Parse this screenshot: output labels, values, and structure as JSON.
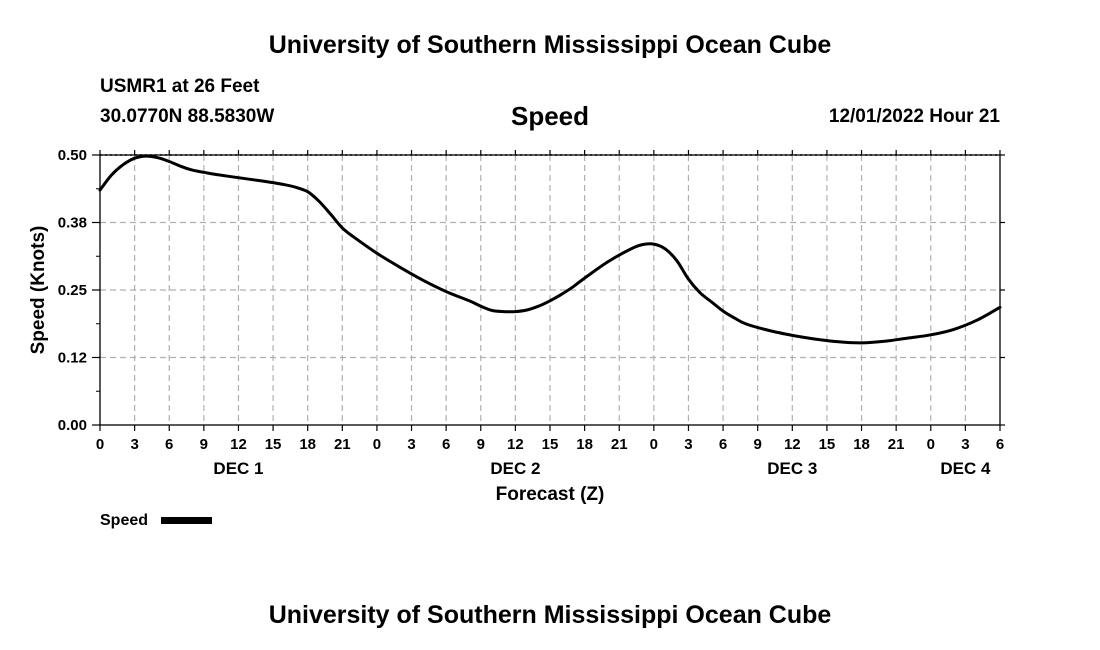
{
  "header": {
    "title": "University of Southern Mississippi Ocean Cube",
    "station": "USMR1 at 26 Feet",
    "location": "30.0770N  88.5830W",
    "datetime": "12/01/2022 Hour 21"
  },
  "footer": {
    "title": "University of Southern Mississippi Ocean Cube"
  },
  "chart_data": {
    "type": "line",
    "title": "Speed",
    "xlabel": "Forecast (Z)",
    "ylabel": "Speed (Knots)",
    "x_unit": "hours since 2022-12-01 00Z",
    "xlim": [
      0,
      78
    ],
    "ylim": [
      0,
      0.5
    ],
    "yticks": [
      0,
      0.125,
      0.25,
      0.375,
      0.5
    ],
    "ytick_labels": [
      "0.00",
      "0.12",
      "0.25",
      "0.38",
      "0.50"
    ],
    "xticks": [
      0,
      3,
      6,
      9,
      12,
      15,
      18,
      21,
      24,
      27,
      30,
      33,
      36,
      39,
      42,
      45,
      48,
      51,
      54,
      57,
      60,
      63,
      66,
      69,
      72,
      75,
      78
    ],
    "xtick_labels": [
      "0",
      "3",
      "6",
      "9",
      "12",
      "15",
      "18",
      "21",
      "0",
      "3",
      "6",
      "9",
      "12",
      "15",
      "18",
      "21",
      "0",
      "3",
      "6",
      "9",
      "12",
      "15",
      "18",
      "21",
      "0",
      "3",
      "6"
    ],
    "day_labels": [
      {
        "label": "DEC 1",
        "hour": 12
      },
      {
        "label": "DEC 2",
        "hour": 36
      },
      {
        "label": "DEC 3",
        "hour": 60
      },
      {
        "label": "DEC 4",
        "hour": 75
      }
    ],
    "grid": true,
    "legend": {
      "label": "Speed",
      "placement": "bottom-left"
    },
    "series": [
      {
        "name": "Speed",
        "x": [
          0,
          1,
          2,
          3,
          4,
          5,
          6,
          7,
          8,
          9,
          10,
          12,
          14,
          16,
          17,
          18,
          19,
          20,
          21,
          22,
          24,
          26,
          28,
          30,
          32,
          33,
          34,
          35,
          36,
          37,
          38,
          39,
          40,
          41,
          42,
          44,
          46,
          47,
          48,
          49,
          50,
          51,
          52,
          53,
          54,
          55,
          56,
          58,
          60,
          62,
          64,
          66,
          68,
          70,
          72,
          74,
          76,
          78
        ],
        "y": [
          0.435,
          0.463,
          0.482,
          0.494,
          0.498,
          0.495,
          0.488,
          0.479,
          0.472,
          0.468,
          0.464,
          0.458,
          0.452,
          0.445,
          0.44,
          0.432,
          0.414,
          0.39,
          0.365,
          0.348,
          0.318,
          0.292,
          0.268,
          0.247,
          0.23,
          0.22,
          0.212,
          0.21,
          0.21,
          0.213,
          0.22,
          0.23,
          0.242,
          0.256,
          0.272,
          0.302,
          0.326,
          0.334,
          0.335,
          0.326,
          0.304,
          0.27,
          0.245,
          0.228,
          0.211,
          0.198,
          0.187,
          0.175,
          0.166,
          0.159,
          0.154,
          0.152,
          0.155,
          0.161,
          0.167,
          0.177,
          0.194,
          0.218
        ]
      }
    ]
  }
}
